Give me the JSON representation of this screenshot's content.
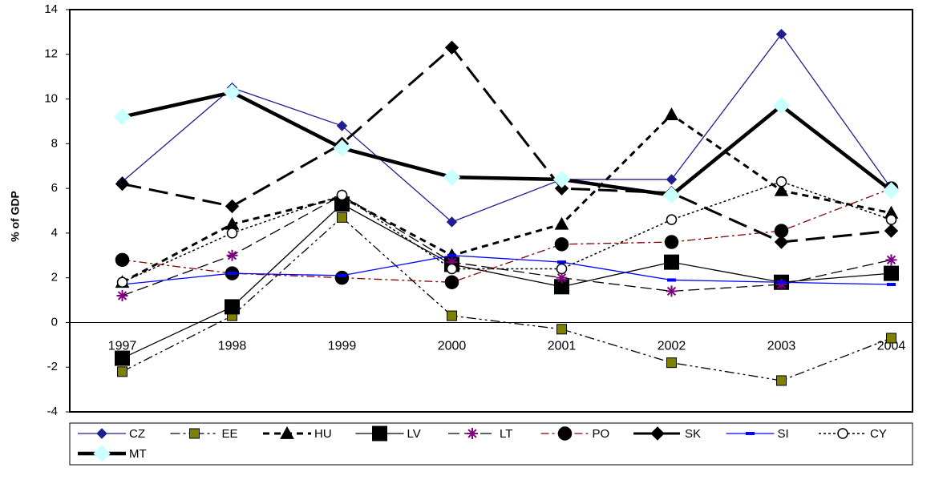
{
  "chart_data": {
    "type": "line",
    "y_label": "% of GDP",
    "categories": [
      "1997",
      "1998",
      "1999",
      "2000",
      "2001",
      "2002",
      "2003",
      "2004"
    ],
    "ylim": [
      -4,
      14
    ],
    "yticks": [
      -4,
      -2,
      0,
      2,
      4,
      6,
      8,
      10,
      12,
      14
    ],
    "series": [
      {
        "name": "CZ",
        "color": "#1f1f8f",
        "values": [
          6.3,
          10.5,
          8.8,
          4.5,
          6.4,
          6.4,
          12.9,
          6.0
        ]
      },
      {
        "name": "EE",
        "color": "#808000",
        "values": [
          -2.2,
          0.3,
          4.7,
          0.3,
          -0.3,
          -1.8,
          -2.6,
          -0.7
        ]
      },
      {
        "name": "HU",
        "color": "#000000",
        "values": [
          1.8,
          4.4,
          5.6,
          3.0,
          4.4,
          9.3,
          5.9,
          4.9
        ]
      },
      {
        "name": "LV",
        "color": "#000000",
        "values": [
          -1.6,
          0.7,
          5.3,
          2.6,
          1.6,
          2.7,
          1.8,
          2.2
        ]
      },
      {
        "name": "LT",
        "color": "#800080",
        "values": [
          1.2,
          3.0,
          5.7,
          2.7,
          2.0,
          1.4,
          1.7,
          2.8
        ]
      },
      {
        "name": "PO",
        "color": "#800000",
        "values": [
          2.8,
          2.2,
          2.0,
          1.8,
          3.5,
          3.6,
          4.1,
          6.0
        ]
      },
      {
        "name": "SK",
        "color": "#000000",
        "values": [
          6.2,
          5.2,
          8.0,
          12.3,
          6.0,
          5.8,
          3.6,
          4.1
        ]
      },
      {
        "name": "SI",
        "color": "#0000ff",
        "values": [
          1.7,
          2.2,
          2.1,
          3.0,
          2.7,
          1.9,
          1.8,
          1.7
        ]
      },
      {
        "name": "CY",
        "color": "#000000",
        "values": [
          1.8,
          4.0,
          5.7,
          2.4,
          2.4,
          4.6,
          6.3,
          4.6
        ]
      },
      {
        "name": "MT",
        "color": "#ccffff",
        "values": [
          9.2,
          10.3,
          7.8,
          6.5,
          6.4,
          5.7,
          9.7,
          5.9
        ]
      }
    ]
  }
}
